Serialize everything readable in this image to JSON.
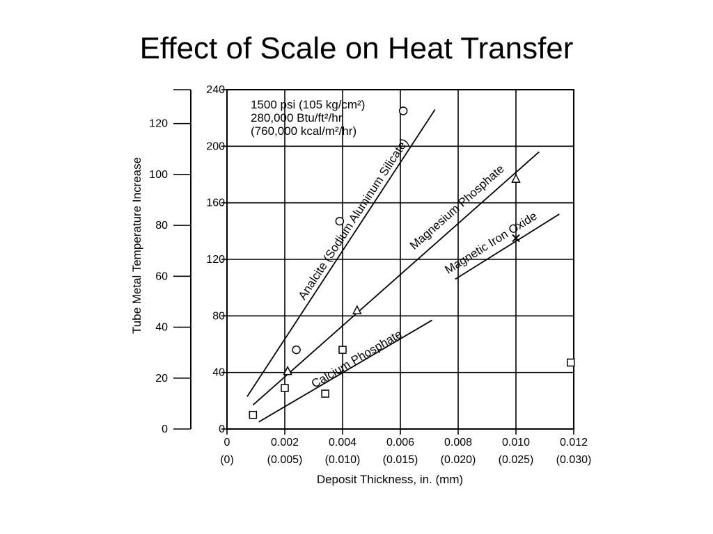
{
  "title": "Effect of Scale on Heat Transfer",
  "chart_data": {
    "type": "scatter",
    "title": "Effect of Scale on Heat Transfer",
    "xlabel": "Deposit Thickness, in. (mm)",
    "ylabel": "Tube Metal Temperature Increase",
    "xlim": [
      0,
      0.012
    ],
    "ylim": [
      0,
      240
    ],
    "y_secondary_lim": [
      0,
      133.3
    ],
    "x_ticks": [
      {
        "value": 0,
        "label": "0",
        "sublabel": "(0)"
      },
      {
        "value": 0.002,
        "label": "0.002",
        "sublabel": "(0.005)"
      },
      {
        "value": 0.004,
        "label": "0.004",
        "sublabel": "(0.010)"
      },
      {
        "value": 0.006,
        "label": "0.006",
        "sublabel": "(0.015)"
      },
      {
        "value": 0.008,
        "label": "0.008",
        "sublabel": "(0.020)"
      },
      {
        "value": 0.01,
        "label": "0.010",
        "sublabel": "(0.025)"
      },
      {
        "value": 0.012,
        "label": "0.012",
        "sublabel": "(0.030)"
      }
    ],
    "y_ticks": [
      {
        "value": 0,
        "label": "0"
      },
      {
        "value": 40,
        "label": "40"
      },
      {
        "value": 80,
        "label": "80"
      },
      {
        "value": 120,
        "label": "120"
      },
      {
        "value": 160,
        "label": "160"
      },
      {
        "value": 200,
        "label": "200"
      },
      {
        "value": 240,
        "label": "240"
      }
    ],
    "y_secondary_ticks": [
      {
        "value": 0,
        "label": "0"
      },
      {
        "value": 20,
        "label": "20"
      },
      {
        "value": 40,
        "label": "40"
      },
      {
        "value": 60,
        "label": "60"
      },
      {
        "value": 80,
        "label": "80"
      },
      {
        "value": 100,
        "label": "100"
      },
      {
        "value": 120,
        "label": "120"
      }
    ],
    "annotation": [
      "1500 psi (105 kg/cm²)",
      "280,000 Btu/ft²/hr",
      "(760,000 kcal/m²/hr)"
    ],
    "grid": true,
    "series": [
      {
        "name": "Analcite (Sodium Aluminum Silicate)",
        "marker": "circle",
        "points": [
          {
            "x": 0.0024,
            "y": 56
          },
          {
            "x": 0.0039,
            "y": 147
          },
          {
            "x": 0.0061,
            "y": 225
          }
        ],
        "line": [
          [
            0.0007,
            23
          ],
          [
            0.0072,
            226
          ]
        ]
      },
      {
        "name": "Magnesium Phosphate",
        "marker": "triangle",
        "points": [
          {
            "x": 0.0021,
            "y": 41
          },
          {
            "x": 0.0045,
            "y": 84
          },
          {
            "x": 0.01,
            "y": 177
          }
        ],
        "line": [
          [
            0.0009,
            17
          ],
          [
            0.0108,
            196
          ]
        ]
      },
      {
        "name": "Magnetic Iron Oxide",
        "marker": "x",
        "points": [
          {
            "x": 0.01,
            "y": 135
          }
        ],
        "line": [
          [
            0.0079,
            106
          ],
          [
            0.0115,
            152
          ]
        ]
      },
      {
        "name": "Calcium Phosphate",
        "marker": "square",
        "points": [
          {
            "x": 0.0009,
            "y": 10
          },
          {
            "x": 0.002,
            "y": 29
          },
          {
            "x": 0.0034,
            "y": 25
          },
          {
            "x": 0.004,
            "y": 56
          },
          {
            "x": 0.0119,
            "y": 47
          }
        ],
        "line": [
          [
            0.0011,
            5
          ],
          [
            0.0071,
            77
          ]
        ]
      }
    ],
    "series_labels": [
      {
        "text": "Analcite (Sodium Aluminum Silicate)",
        "series": 0
      },
      {
        "text": "Magnesium Phosphate",
        "series": 1
      },
      {
        "text": "Magnetic Iron Oxide",
        "series": 2
      },
      {
        "text": "Calcium Phosphate",
        "series": 3
      }
    ]
  }
}
